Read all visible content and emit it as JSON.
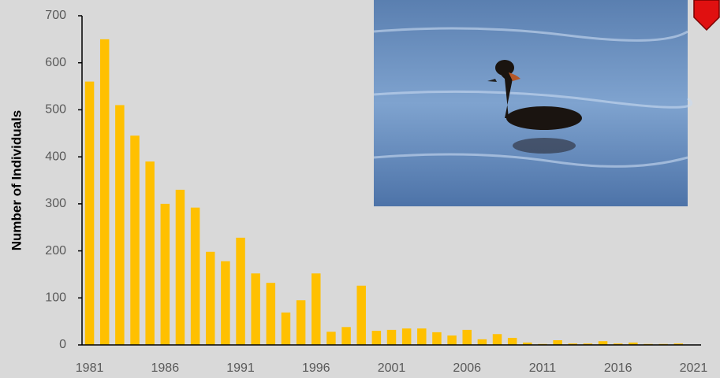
{
  "chart_data": {
    "type": "bar",
    "y_label": "Number of Individuals",
    "x": [
      1981,
      1982,
      1983,
      1984,
      1985,
      1986,
      1987,
      1988,
      1989,
      1990,
      1991,
      1992,
      1993,
      1994,
      1995,
      1996,
      1997,
      1998,
      1999,
      2000,
      2001,
      2002,
      2003,
      2004,
      2005,
      2006,
      2007,
      2008,
      2009,
      2010,
      2011,
      2012,
      2013,
      2014,
      2015,
      2016,
      2017,
      2018,
      2019,
      2020,
      2021
    ],
    "values": [
      560,
      650,
      510,
      445,
      390,
      300,
      330,
      292,
      198,
      178,
      228,
      152,
      132,
      69,
      95,
      152,
      28,
      38,
      126,
      30,
      32,
      35,
      35,
      27,
      20,
      32,
      12,
      23,
      15,
      5,
      2,
      10,
      3,
      3,
      8,
      3,
      5,
      2,
      2,
      3,
      0
    ],
    "color": "#ffc000",
    "xlim": [
      1980.5,
      2021.5
    ],
    "xticks": [
      1981,
      1986,
      1991,
      1996,
      2001,
      2006,
      2011,
      2016,
      2021
    ],
    "ylim": [
      0,
      700
    ],
    "yticks": [
      0,
      100,
      200,
      300,
      400,
      500,
      600,
      700
    ],
    "grid": false
  }
}
